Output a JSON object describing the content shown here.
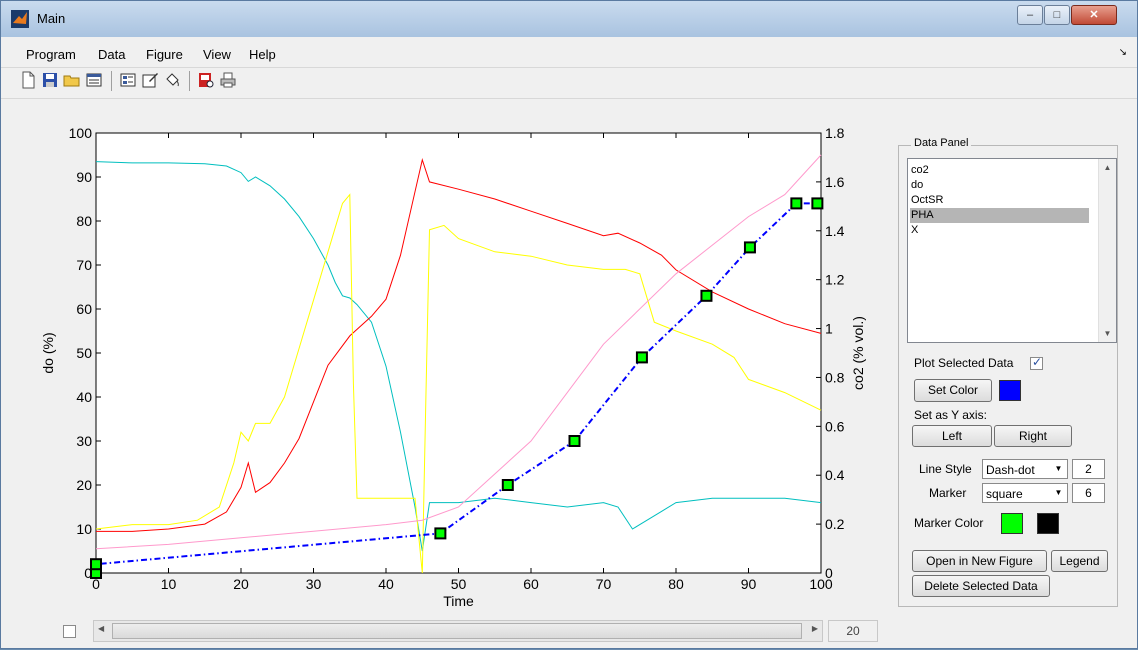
{
  "window": {
    "title": "Main"
  },
  "menu": [
    "Program",
    "Data",
    "Figure",
    "View",
    "Help"
  ],
  "toolbar_icons": [
    "new-file-icon",
    "save-icon",
    "open-folder-icon",
    "property-editor-icon",
    "plot-browser-icon",
    "edit-icon",
    "paint-bucket-icon",
    "print-preview-icon",
    "print-icon"
  ],
  "panel": {
    "title": "Data Panel",
    "list_items": [
      "co2",
      "do",
      "OctSR",
      "PHA",
      "X"
    ],
    "selected_item": "PHA",
    "plot_selected_label": "Plot Selected Data",
    "plot_selected_checked": true,
    "set_color_button": "Set Color",
    "line_color": "#0000ff",
    "set_y_axis_label": "Set as Y axis:",
    "left_button": "Left",
    "right_button": "Right",
    "line_style_label": "Line Style",
    "line_style_value": "Dash-dot",
    "line_width": "2",
    "marker_label": "Marker",
    "marker_value": "square",
    "marker_size": "6",
    "marker_color_label": "Marker Color",
    "marker_face_color": "#00ff00",
    "marker_edge_color": "#000000",
    "open_new_figure_button": "Open in New Figure",
    "legend_button": "Legend",
    "delete_button": "Delete Selected Data"
  },
  "slider": {
    "value": "20",
    "checkbox_checked": false
  },
  "chart_data": {
    "type": "line",
    "xlabel": "Time",
    "ylabel_left": "do (%)",
    "ylabel_right": "co2 (% vol.)",
    "xlim": [
      0,
      100
    ],
    "ylim_left": [
      0,
      100
    ],
    "ylim_right": [
      0,
      1.8
    ],
    "xticks": [
      0,
      10,
      20,
      30,
      40,
      50,
      60,
      70,
      80,
      90,
      100
    ],
    "yticks_left": [
      0,
      10,
      20,
      30,
      40,
      50,
      60,
      70,
      80,
      90,
      100
    ],
    "yticks_right": [
      0,
      0.2,
      0.4,
      0.6,
      0.8,
      1,
      1.2,
      1.4,
      1.6,
      1.8
    ],
    "series": [
      {
        "name": "do",
        "axis": "left",
        "color": "#00bfbf",
        "x": [
          0,
          5,
          10,
          15,
          18,
          20,
          21,
          22,
          24,
          26,
          28,
          30,
          32,
          33,
          34,
          35,
          36,
          38,
          40,
          42,
          44,
          45,
          46,
          50,
          55,
          60,
          65,
          70,
          72,
          74,
          75,
          78,
          80,
          85,
          90,
          95,
          100
        ],
        "y": [
          93.5,
          93.2,
          93.2,
          93,
          92.5,
          91,
          89,
          90,
          88,
          85,
          81,
          76,
          70,
          66,
          63,
          62.5,
          61,
          57,
          47,
          32,
          15,
          5,
          16,
          16,
          17,
          16,
          15,
          16,
          15,
          10,
          11,
          14,
          16,
          17,
          17,
          17,
          16
        ]
      },
      {
        "name": "co2",
        "axis": "right",
        "color": "#ff0000",
        "x": [
          0,
          5,
          10,
          15,
          18,
          20,
          21,
          22,
          24,
          26,
          28,
          30,
          32,
          35,
          38,
          40,
          42,
          44,
          45,
          46,
          50,
          55,
          60,
          65,
          70,
          72,
          75,
          78,
          80,
          85,
          90,
          95,
          100
        ],
        "y": [
          0.17,
          0.17,
          0.18,
          0.2,
          0.25,
          0.35,
          0.45,
          0.33,
          0.37,
          0.45,
          0.55,
          0.7,
          0.85,
          0.97,
          1.05,
          1.12,
          1.3,
          1.56,
          1.69,
          1.6,
          1.57,
          1.53,
          1.48,
          1.43,
          1.38,
          1.39,
          1.35,
          1.3,
          1.24,
          1.15,
          1.08,
          1.02,
          0.98
        ]
      },
      {
        "name": "OctSR",
        "axis": "left",
        "color": "#ffff00",
        "x": [
          0,
          5,
          10,
          14,
          17,
          19,
          20,
          21,
          22,
          24,
          26,
          28,
          30,
          32,
          34,
          35,
          35.5,
          36,
          40,
          44,
          45,
          45.5,
          46,
          48,
          50,
          55,
          60,
          65,
          70,
          73,
          75,
          77,
          80,
          85,
          88,
          90,
          95,
          100
        ],
        "y": [
          10,
          11,
          11,
          12,
          15,
          25,
          32,
          30,
          34,
          34,
          40,
          51,
          62,
          73,
          84,
          86,
          43,
          17,
          17,
          17,
          0,
          40,
          78,
          79,
          76,
          73,
          72,
          70,
          69,
          69,
          68,
          57,
          55,
          52,
          49,
          44,
          41,
          37
        ]
      },
      {
        "name": "PHA",
        "axis": "left",
        "color": "#0000ff",
        "marker": "square",
        "x": [
          0,
          0,
          47.5,
          56.8,
          66,
          75.3,
          84.2,
          90.2,
          96.6,
          99.5
        ],
        "y": [
          0,
          2,
          9,
          20,
          30,
          49,
          63,
          74,
          84,
          84
        ]
      },
      {
        "name": "X",
        "axis": "left",
        "color": "#ff99cc",
        "x": [
          0,
          10,
          20,
          30,
          40,
          45,
          50,
          60,
          70,
          80,
          90,
          95,
          100
        ],
        "y": [
          5.5,
          6.5,
          8,
          9.5,
          11,
          12,
          15,
          30,
          52,
          68,
          81,
          86,
          95
        ]
      }
    ]
  }
}
